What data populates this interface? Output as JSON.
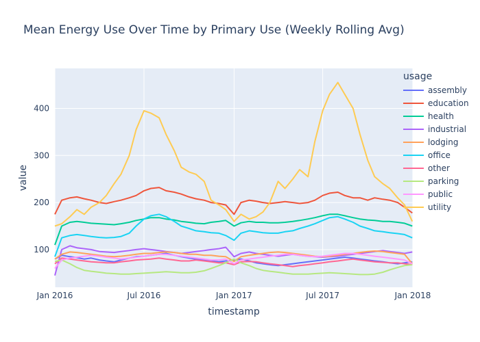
{
  "chart_data": {
    "type": "line",
    "title": "Mean Energy Use Over Time by Primary Use (Weekly Rolling Avg)",
    "xlabel": "timestamp",
    "ylabel": "value",
    "xlim": [
      "2016-01-01",
      "2018-01-01"
    ],
    "ylim": [
      20,
      485
    ],
    "x_ticks": [
      "Jan 2016",
      "Jul 2016",
      "Jan 2017",
      "Jul 2017",
      "Jan 2018"
    ],
    "y_ticks": [
      100,
      200,
      300,
      400
    ],
    "grid": true,
    "legend_title": "usage",
    "legend_position": "right",
    "x": [
      "2016-01-01",
      "2016-01-15",
      "2016-02-01",
      "2016-02-15",
      "2016-03-01",
      "2016-03-15",
      "2016-04-01",
      "2016-04-15",
      "2016-05-01",
      "2016-05-15",
      "2016-06-01",
      "2016-06-15",
      "2016-07-01",
      "2016-07-15",
      "2016-08-01",
      "2016-08-15",
      "2016-09-01",
      "2016-09-15",
      "2016-10-01",
      "2016-10-15",
      "2016-11-01",
      "2016-11-15",
      "2016-12-01",
      "2016-12-15",
      "2017-01-01",
      "2017-01-15",
      "2017-02-01",
      "2017-02-15",
      "2017-03-01",
      "2017-03-15",
      "2017-04-01",
      "2017-04-15",
      "2017-05-01",
      "2017-05-15",
      "2017-06-01",
      "2017-06-15",
      "2017-07-01",
      "2017-07-15",
      "2017-08-01",
      "2017-08-15",
      "2017-09-01",
      "2017-09-15",
      "2017-10-01",
      "2017-10-15",
      "2017-11-01",
      "2017-11-15",
      "2017-12-01",
      "2017-12-15",
      "2017-12-31"
    ],
    "series": [
      {
        "name": "assembly",
        "color": "#636efa",
        "values": [
          80,
          88,
          85,
          83,
          80,
          82,
          78,
          76,
          74,
          78,
          82,
          85,
          86,
          88,
          90,
          92,
          88,
          85,
          82,
          80,
          78,
          76,
          74,
          76,
          78,
          80,
          76,
          72,
          70,
          68,
          66,
          68,
          70,
          72,
          74,
          76,
          78,
          80,
          82,
          84,
          82,
          80,
          78,
          76,
          74,
          72,
          70,
          72,
          74
        ]
      },
      {
        "name": "education",
        "color": "#ef553b",
        "values": [
          175,
          205,
          210,
          212,
          208,
          205,
          200,
          198,
          202,
          205,
          210,
          215,
          225,
          230,
          232,
          225,
          222,
          218,
          212,
          208,
          205,
          200,
          198,
          195,
          175,
          200,
          205,
          203,
          200,
          198,
          200,
          202,
          200,
          198,
          200,
          205,
          215,
          220,
          222,
          215,
          210,
          210,
          205,
          210,
          207,
          205,
          200,
          190,
          178
        ]
      },
      {
        "name": "health",
        "color": "#00cc96",
        "values": [
          110,
          150,
          158,
          160,
          158,
          156,
          155,
          154,
          153,
          155,
          158,
          162,
          165,
          168,
          168,
          165,
          163,
          160,
          158,
          156,
          155,
          158,
          160,
          162,
          150,
          157,
          160,
          158,
          158,
          157,
          157,
          158,
          160,
          162,
          165,
          168,
          172,
          175,
          175,
          172,
          168,
          165,
          163,
          162,
          160,
          160,
          158,
          156,
          150
        ]
      },
      {
        "name": "industrial",
        "color": "#ab63fa",
        "values": [
          45,
          100,
          108,
          104,
          102,
          100,
          96,
          95,
          94,
          96,
          98,
          100,
          102,
          100,
          98,
          96,
          94,
          92,
          94,
          96,
          98,
          100,
          102,
          105,
          85,
          92,
          95,
          92,
          90,
          88,
          86,
          88,
          90,
          88,
          86,
          85,
          84,
          85,
          86,
          88,
          90,
          92,
          94,
          96,
          98,
          96,
          94,
          92,
          95
        ]
      },
      {
        "name": "lodging",
        "color": "#ffa15a",
        "values": [
          80,
          90,
          95,
          94,
          92,
          90,
          88,
          86,
          85,
          86,
          88,
          90,
          92,
          92,
          94,
          95,
          94,
          92,
          90,
          90,
          88,
          88,
          86,
          85,
          75,
          85,
          88,
          90,
          92,
          94,
          95,
          94,
          92,
          90,
          88,
          86,
          85,
          86,
          88,
          90,
          92,
          94,
          96,
          97,
          96,
          94,
          92,
          90,
          70
        ]
      },
      {
        "name": "office",
        "color": "#19d3f3",
        "values": [
          85,
          125,
          130,
          132,
          130,
          128,
          126,
          125,
          126,
          128,
          135,
          150,
          165,
          172,
          175,
          170,
          160,
          150,
          145,
          140,
          138,
          136,
          135,
          130,
          120,
          135,
          140,
          138,
          136,
          135,
          135,
          138,
          140,
          145,
          150,
          155,
          162,
          168,
          170,
          165,
          158,
          150,
          145,
          140,
          138,
          136,
          134,
          132,
          125
        ]
      },
      {
        "name": "other",
        "color": "#ff6692",
        "values": [
          70,
          82,
          80,
          78,
          76,
          74,
          73,
          72,
          72,
          74,
          76,
          78,
          79,
          80,
          82,
          80,
          78,
          76,
          76,
          78,
          76,
          74,
          72,
          72,
          68,
          74,
          75,
          74,
          72,
          70,
          68,
          66,
          64,
          66,
          68,
          70,
          72,
          74,
          76,
          78,
          80,
          78,
          76,
          74,
          73,
          72,
          72,
          70,
          68
        ]
      },
      {
        "name": "parking",
        "color": "#b6e880",
        "values": [
          75,
          78,
          70,
          62,
          56,
          54,
          52,
          50,
          49,
          48,
          48,
          49,
          50,
          51,
          52,
          53,
          52,
          51,
          51,
          52,
          55,
          60,
          66,
          72,
          80,
          72,
          66,
          60,
          56,
          54,
          52,
          50,
          48,
          48,
          48,
          49,
          50,
          51,
          50,
          49,
          48,
          47,
          47,
          48,
          52,
          57,
          62,
          66,
          68
        ]
      },
      {
        "name": "public",
        "color": "#ff97ff",
        "values": [
          60,
          78,
          82,
          84,
          86,
          88,
          86,
          84,
          82,
          80,
          82,
          84,
          86,
          88,
          90,
          90,
          88,
          86,
          84,
          82,
          80,
          78,
          78,
          80,
          70,
          78,
          80,
          82,
          84,
          86,
          88,
          90,
          90,
          88,
          86,
          85,
          86,
          88,
          90,
          92,
          92,
          90,
          88,
          86,
          84,
          82,
          80,
          78,
          70
        ]
      },
      {
        "name": "utility",
        "color": "#fecb52",
        "values": [
          150,
          155,
          170,
          185,
          175,
          190,
          200,
          215,
          240,
          260,
          300,
          355,
          395,
          390,
          380,
          345,
          310,
          275,
          265,
          260,
          245,
          205,
          195,
          185,
          160,
          175,
          165,
          170,
          180,
          200,
          245,
          230,
          250,
          270,
          255,
          330,
          395,
          430,
          455,
          430,
          400,
          345,
          290,
          255,
          240,
          230,
          210,
          195,
          160
        ]
      }
    ]
  }
}
